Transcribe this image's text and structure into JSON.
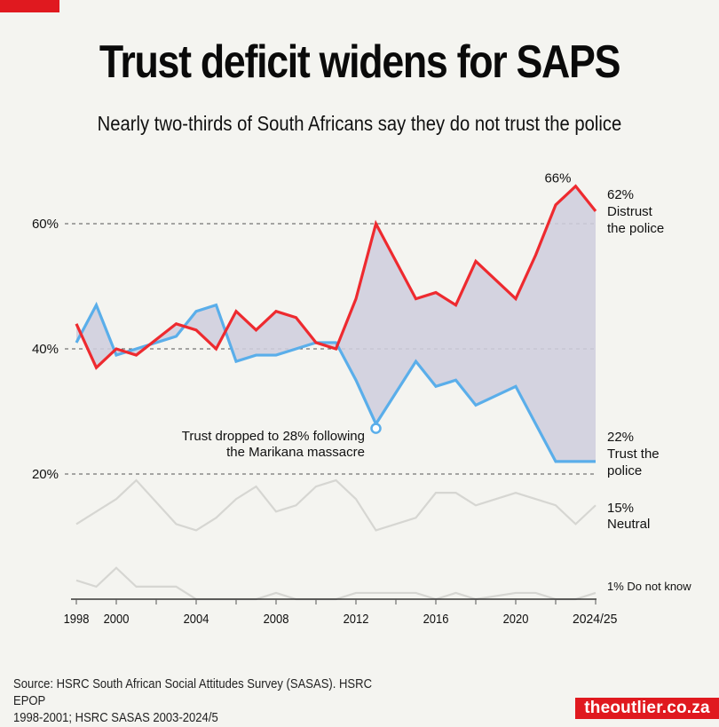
{
  "header": {
    "title": "Trust deficit widens for SAPS",
    "subtitle": "Nearly two-thirds of South Africans say they do not trust the police"
  },
  "footer": {
    "source_line1": "Source: HSRC South African Social Attitudes Survey (SASAS). HSRC EPOP",
    "source_line2": "1998-2001; HSRC SASAS 2003-2024/5",
    "brand": "theoutlier.co.za"
  },
  "colors": {
    "brand_red": "#e0191f",
    "distrust": "#ee2a2f",
    "trust": "#5aaeea",
    "neutral": "#d6d6d2",
    "background": "#f4f4f0"
  },
  "chart_data": {
    "type": "line",
    "title": "Trust deficit widens for SAPS",
    "subtitle": "Nearly two-thirds of South Africans say they do not trust the police",
    "xlabel": "",
    "ylabel": "",
    "ylim": [
      0,
      70
    ],
    "xlim": [
      1998,
      2024
    ],
    "grid": true,
    "y_ticks": [
      {
        "value": 20,
        "label": "20%"
      },
      {
        "value": 40,
        "label": "40%"
      },
      {
        "value": 60,
        "label": "60%"
      }
    ],
    "x_ticks": [
      1998,
      2000,
      2002,
      2004,
      2006,
      2008,
      2010,
      2012,
      2014,
      2016,
      2018,
      2020,
      2022,
      2024
    ],
    "x_tick_labels": [
      {
        "value": 1998,
        "label": "1998"
      },
      {
        "value": 2000,
        "label": "2000"
      },
      {
        "value": 2004,
        "label": "2004"
      },
      {
        "value": 2008,
        "label": "2008"
      },
      {
        "value": 2012,
        "label": "2012"
      },
      {
        "value": 2016,
        "label": "2016"
      },
      {
        "value": 2020,
        "label": "2020"
      },
      {
        "value": 2024,
        "label": "2024/25"
      }
    ],
    "x": [
      1998,
      1999,
      2000,
      2001,
      2003,
      2004,
      2005,
      2006,
      2007,
      2008,
      2009,
      2010,
      2011,
      2012,
      2013,
      2015,
      2016,
      2017,
      2018,
      2020,
      2021,
      2022,
      2023,
      2024
    ],
    "series": [
      {
        "name": "Distrust the police",
        "key": "distrust",
        "values": [
          44,
          37,
          40,
          39,
          44,
          43,
          40,
          46,
          43,
          46,
          45,
          41,
          40,
          48,
          60,
          48,
          49,
          47,
          54,
          48,
          55,
          63,
          66,
          62
        ]
      },
      {
        "name": "Trust the police",
        "key": "trust",
        "values": [
          41,
          47,
          39,
          40,
          42,
          46,
          47,
          38,
          39,
          39,
          40,
          41,
          41,
          35,
          28,
          38,
          34,
          35,
          31,
          34,
          28,
          22,
          22,
          22
        ]
      },
      {
        "name": "Neutral",
        "key": "neutral",
        "values": [
          12,
          14,
          16,
          19,
          12,
          11,
          13,
          16,
          18,
          14,
          15,
          18,
          19,
          16,
          11,
          13,
          17,
          17,
          15,
          17,
          16,
          15,
          12,
          15
        ]
      },
      {
        "name": "Do not know",
        "key": "dontknow",
        "values": [
          3,
          2,
          5,
          2,
          2,
          0,
          0,
          0,
          0,
          1,
          0,
          0,
          0,
          1,
          1,
          1,
          0,
          1,
          0,
          1,
          1,
          0,
          0,
          1
        ]
      }
    ],
    "end_labels": {
      "distrust": {
        "value": "62%",
        "line1": "Distrust",
        "line2": "the police"
      },
      "trust": {
        "value": "22%",
        "line1": "Trust the",
        "line2": "police"
      },
      "neutral": {
        "value": "15%",
        "line1": "Neutral"
      },
      "dontknow": {
        "text": "1% Do not know"
      }
    },
    "annotations": [
      {
        "x": 2023,
        "y": 66,
        "text": "66%"
      },
      {
        "x": 2013,
        "y": 28,
        "line1": "Trust dropped to 28% following",
        "line2": "the Marikana massacre"
      }
    ],
    "legend": "none (direct labels at right)"
  }
}
